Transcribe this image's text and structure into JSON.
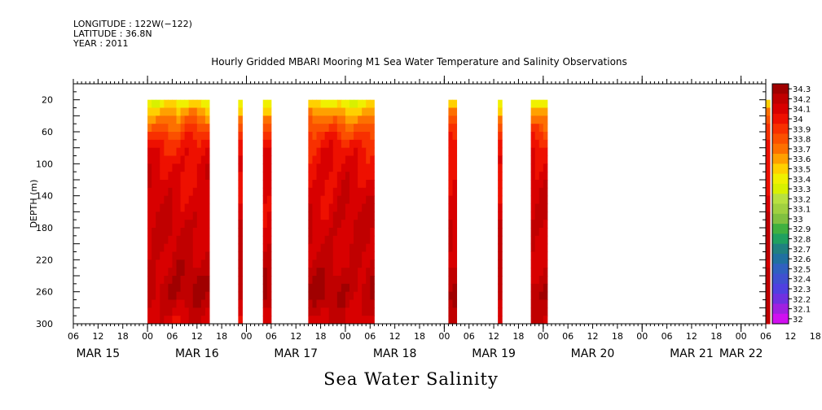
{
  "header": {
    "longitude": "LONGITUDE : 122W(−122)",
    "latitude": "LATITUDE : 36.8N",
    "year": "YEAR : 2011"
  },
  "chart_data": {
    "type": "heatmap",
    "title": "Hourly Gridded MBARI Mooring M1 Sea Water Temperature and Salinity Observations",
    "xlabel": "Sea Water Salinity",
    "ylabel": "DEPTH (m)",
    "x_hours_ticks": [
      "06",
      "12",
      "18",
      "00",
      "06",
      "12",
      "18",
      "00",
      "06",
      "12",
      "18",
      "00",
      "06",
      "12",
      "18",
      "00",
      "06",
      "12",
      "18",
      "00",
      "06",
      "12",
      "18",
      "00",
      "06",
      "12",
      "18",
      "00",
      "06",
      "12",
      "18",
      "00",
      "06"
    ],
    "x_day_labels": [
      "MAR 15",
      "MAR 16",
      "MAR 17",
      "MAR 18",
      "MAR 19",
      "MAR 20",
      "MAR 21",
      "MAR 22"
    ],
    "xlim_hours": [
      6,
      174
    ],
    "y_ticks": [
      20,
      60,
      100,
      140,
      180,
      220,
      260,
      300
    ],
    "ylim": [
      300,
      0
    ],
    "colorbar": {
      "levels": [
        "34.3",
        "34.2",
        "34.1",
        "34",
        "33.9",
        "33.8",
        "33.7",
        "33.6",
        "33.5",
        "33.4",
        "33.3",
        "33.2",
        "33.1",
        "33",
        "32.9",
        "32.8",
        "32.7",
        "32.6",
        "32.5",
        "32.4",
        "32.3",
        "32.2",
        "32.1",
        "32"
      ],
      "colors": [
        "#a00000",
        "#c00000",
        "#d80000",
        "#ee1000",
        "#f83000",
        "#fb5000",
        "#fd7000",
        "#ffa000",
        "#ffd000",
        "#f0f000",
        "#d8f000",
        "#b8e040",
        "#a0d040",
        "#80c040",
        "#40b040",
        "#20a060",
        "#208080",
        "#2070a0",
        "#3060c0",
        "#4050d0",
        "#5040e0",
        "#7030e0",
        "#a020e0",
        "#d010f0"
      ]
    },
    "data_segments_hours": [
      [
        24,
        39
      ],
      [
        46,
        47
      ],
      [
        52,
        54
      ],
      [
        63,
        79
      ],
      [
        97,
        99
      ],
      [
        109,
        110
      ],
      [
        117,
        121
      ],
      [
        174,
        175
      ]
    ],
    "depth_profile_mean": [
      {
        "depth": 20,
        "salinity": 33.4
      },
      {
        "depth": 40,
        "salinity": 33.7
      },
      {
        "depth": 60,
        "salinity": 33.9
      },
      {
        "depth": 80,
        "salinity": 34.05
      },
      {
        "depth": 100,
        "salinity": 34.1
      },
      {
        "depth": 140,
        "salinity": 34.15
      },
      {
        "depth": 180,
        "salinity": 34.2
      },
      {
        "depth": 220,
        "salinity": 34.2
      },
      {
        "depth": 260,
        "salinity": 34.3
      },
      {
        "depth": 300,
        "salinity": 34.15
      }
    ]
  }
}
